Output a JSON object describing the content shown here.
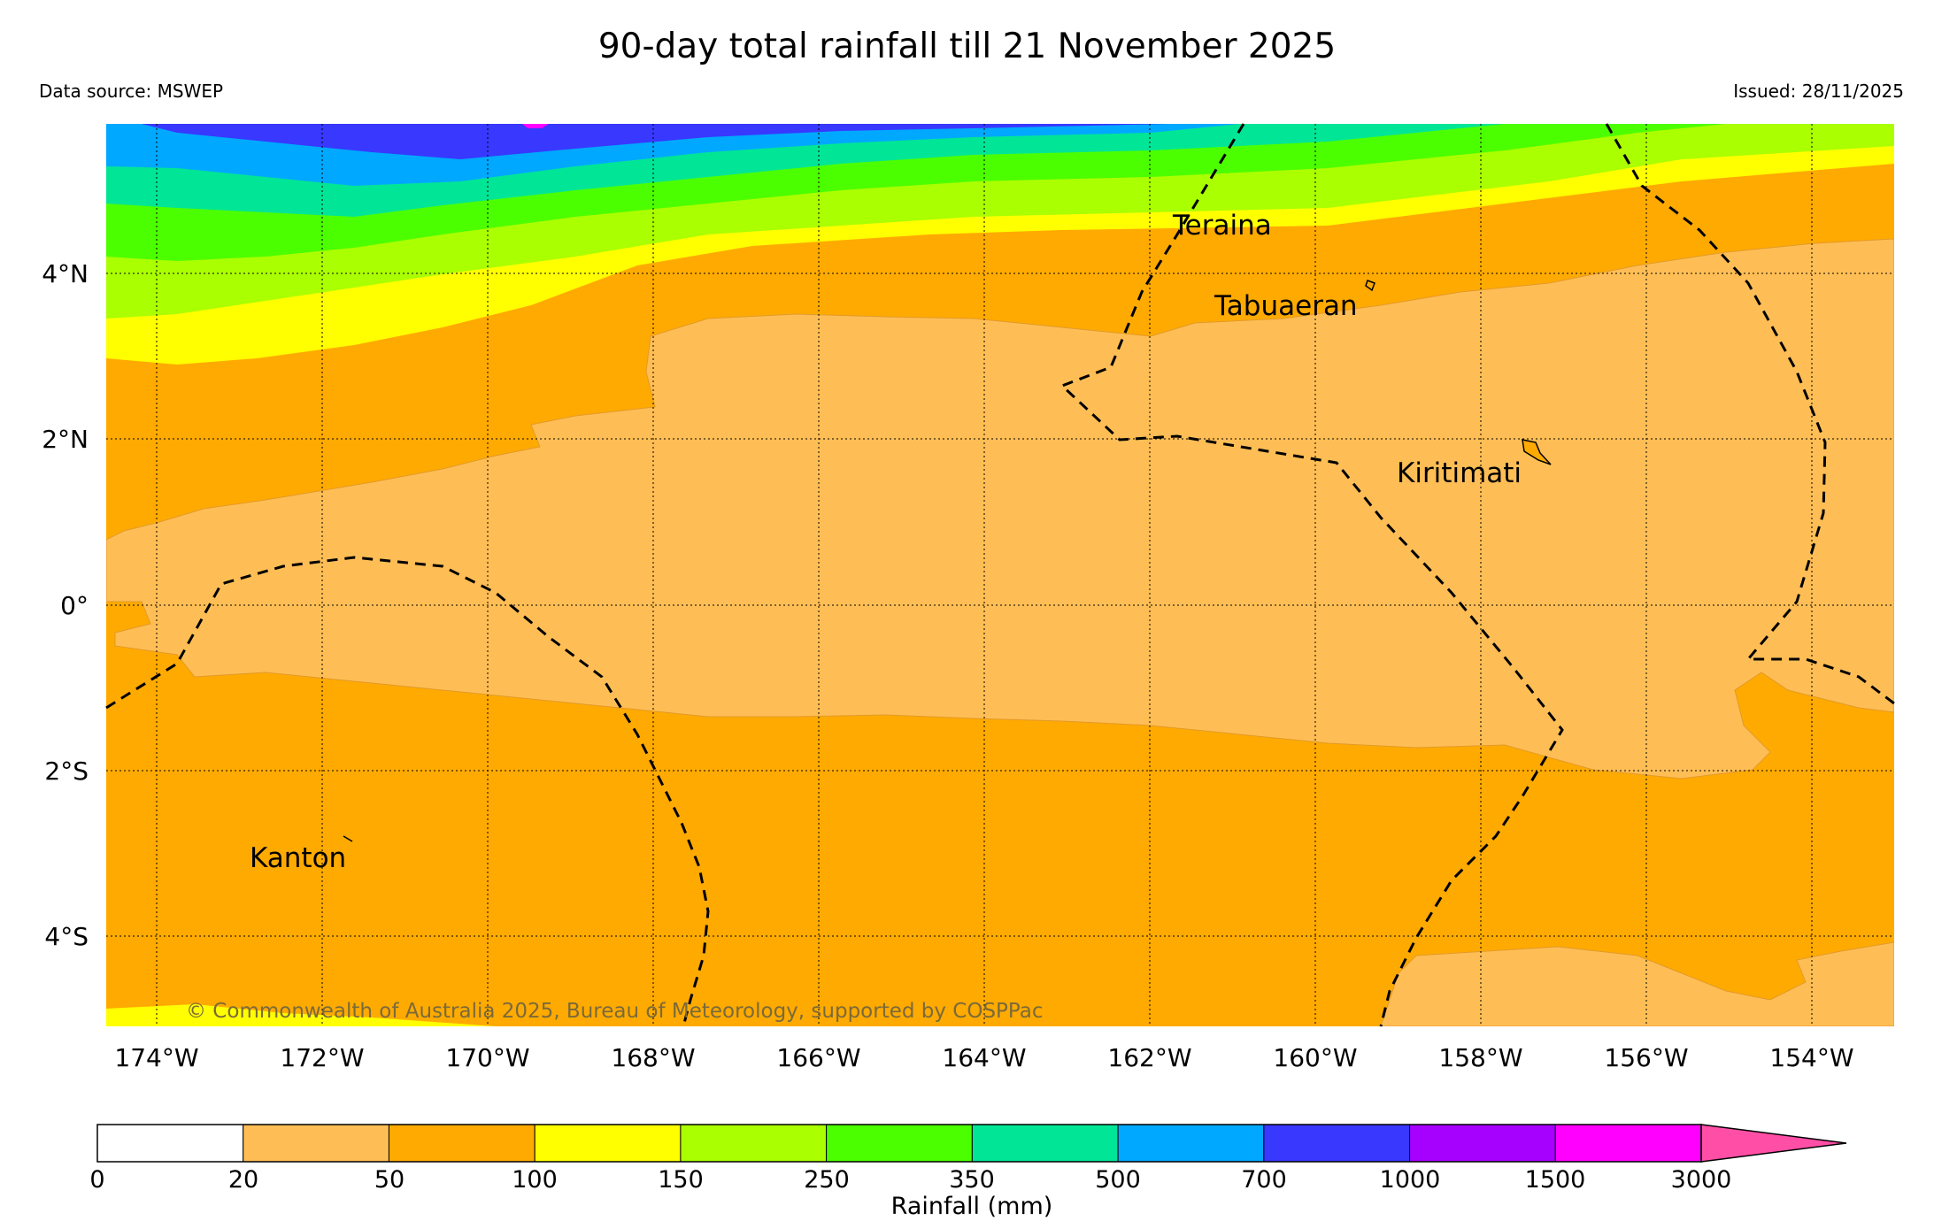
{
  "title": "90-day total rainfall till 21 November 2025",
  "source": "Data source: MSWEP",
  "issued": "Issued: 28/11/2025",
  "copyright": "© Commonwealth of Australia 2025, Bureau of Meteorology, supported by COSPPac",
  "lon_labels": [
    "174°W",
    "172°W",
    "170°W",
    "168°W",
    "166°W",
    "164°W",
    "162°W",
    "160°W",
    "158°W",
    "156°W",
    "154°W"
  ],
  "lat_labels": [
    "4°N",
    "2°N",
    "0°",
    "2°S",
    "4°S"
  ],
  "places": {
    "teraina": "Teraina",
    "tabuaeran": "Tabuaeran",
    "kiritimati": "Kiritimati",
    "kanton": "Kanton"
  },
  "colorbar": {
    "label": "Rainfall (mm)",
    "ticks": [
      "0",
      "20",
      "50",
      "100",
      "150",
      "250",
      "350",
      "500",
      "700",
      "1000",
      "1500",
      "3000"
    ],
    "colors": [
      "#ffffff",
      "#ffbe55",
      "#ffaa00",
      "#ffff00",
      "#aaff00",
      "#4cff00",
      "#00e696",
      "#00a8ff",
      "#3838ff",
      "#a600ff",
      "#ff00ff",
      "#ff4ea6"
    ]
  }
}
